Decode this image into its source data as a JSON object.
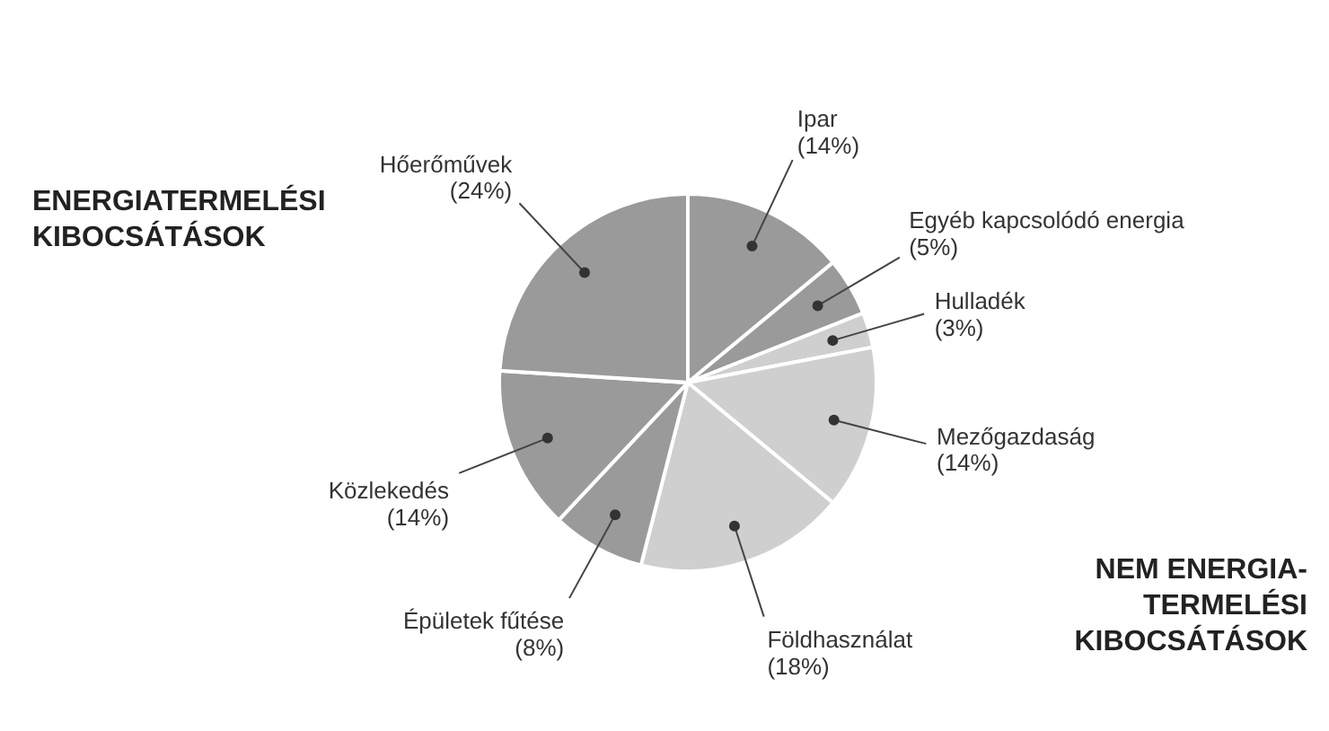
{
  "chart_data": {
    "type": "pie",
    "categories": [
      "Ipar",
      "Egyéb kapcsolódó energia",
      "Hulladék",
      "Mezőgazdaság",
      "Földhasználat",
      "Épületek fűtése",
      "Közlekedés",
      "Hőerőművek"
    ],
    "values": [
      14,
      5,
      3,
      14,
      18,
      8,
      14,
      24
    ],
    "value_labels": [
      "(14%)",
      "(5%)",
      "(3%)",
      "(14%)",
      "(18%)",
      "(8%)",
      "(14%)",
      "(24%)"
    ],
    "colors": [
      "#9a9a9a",
      "#9a9a9a",
      "#cfcfcf",
      "#cfcfcf",
      "#cfcfcf",
      "#9a9a9a",
      "#9a9a9a",
      "#9a9a9a"
    ],
    "annotations": [
      "ENERGIATERMELÉSI KIBOCSÁTÁSOK",
      "NEM ENERGIA-TERMELÉSI KIBOCSÁTÁSOK"
    ]
  }
}
